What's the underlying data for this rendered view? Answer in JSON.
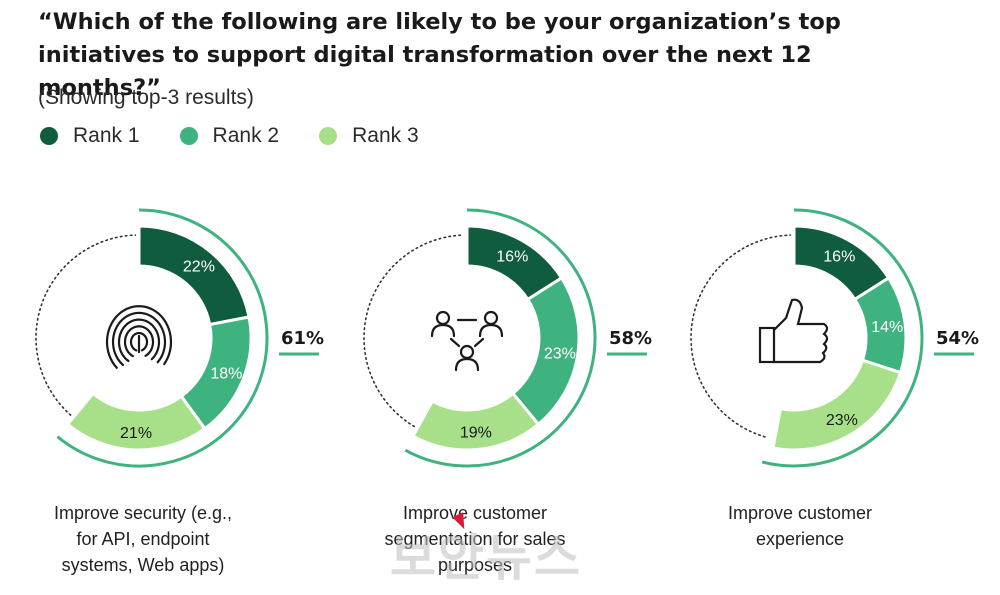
{
  "title_line1": "“Which of the following are likely to be your organization’s top",
  "title_line2": "initiatives to support digital transformation over the next 12 months?”",
  "subtitle": "(Showing top-3 results)",
  "legend": [
    {
      "label": "Rank 1",
      "color": "#0f5c3f"
    },
    {
      "label": "Rank 2",
      "color": "#3fb37f"
    },
    {
      "label": "Rank 3",
      "color": "#a8e08a"
    }
  ],
  "watermark": "보안뉴스",
  "chart_data": {
    "type": "donut",
    "series_names": [
      "Rank 1",
      "Rank 2",
      "Rank 3"
    ],
    "charts": [
      {
        "category": "Improve security (e.g., for API, endpoint systems, Web apps)",
        "caption_lines": [
          "Improve security (e.g.,",
          "for API, endpoint",
          "systems, Web apps)"
        ],
        "values": [
          22,
          18,
          21
        ],
        "labels": [
          "22%",
          "18%",
          "21%"
        ],
        "total": 61,
        "total_label": "61%",
        "icon": "fingerprint-icon"
      },
      {
        "category": "Improve customer segmentation for sales purposes",
        "caption_lines": [
          "Improve customer",
          "segmentation for sales",
          "purposes"
        ],
        "values": [
          16,
          23,
          19
        ],
        "labels": [
          "16%",
          "23%",
          "19%"
        ],
        "total": 58,
        "total_label": "58%",
        "icon": "people-network-icon"
      },
      {
        "category": "Improve customer experience",
        "caption_lines": [
          "Improve customer",
          "experience"
        ],
        "values": [
          16,
          14,
          23
        ],
        "labels": [
          "16%",
          "14%",
          "23%"
        ],
        "total": 54,
        "total_label": "54%",
        "icon": "thumbs-up-icon"
      }
    ]
  }
}
